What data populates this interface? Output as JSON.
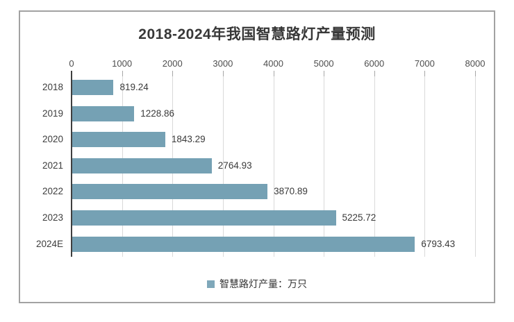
{
  "chart_data": {
    "type": "bar",
    "orientation": "horizontal",
    "title": "2018-2024年我国智慧路灯产量预测",
    "categories": [
      "2018",
      "2019",
      "2020",
      "2021",
      "2022",
      "2023",
      "2024E"
    ],
    "series": [
      {
        "name": "智慧路灯产量：万只",
        "values": [
          819.24,
          1228.86,
          1843.29,
          2764.93,
          3870.89,
          5225.72,
          6793.43
        ]
      }
    ],
    "value_labels": [
      "819.24",
      "1228.86",
      "1843.29",
      "2764.93",
      "3870.89",
      "5225.72",
      "6793.43"
    ],
    "x_axis": {
      "min": 0,
      "max": 8000,
      "tick_interval": 1000,
      "ticks": [
        0,
        1000,
        2000,
        3000,
        4000,
        5000,
        6000,
        7000,
        8000
      ],
      "position": "top"
    },
    "grid": true,
    "legend": {
      "label": "智慧路灯产量：万只",
      "position": "bottom"
    },
    "colors": {
      "bar": "#75A1B4",
      "legend_marker": "#7FA8BA",
      "gridline": "#d9d9d9",
      "axis_line": "#3f3f3f",
      "title_text": "#383838",
      "frame_border": "#a2a2a2"
    }
  }
}
